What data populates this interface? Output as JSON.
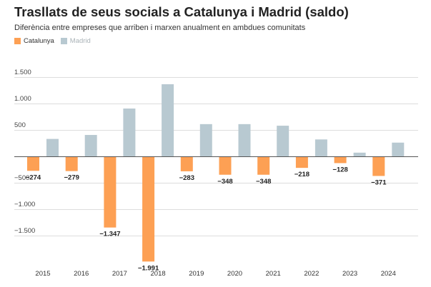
{
  "title": "Trasllats de seus socials a Catalunya i Madrid (saldo)",
  "subtitle": "Diferència entre empreses que arriben i marxen anualment en ambdues comunitats",
  "colors": {
    "catalunya": "#fda054",
    "madrid": "#b8c9d1",
    "grid": "#dddddd",
    "zero": "#555555"
  },
  "chart_data": {
    "type": "bar",
    "title": "Trasllats de seus socials a Catalunya i Madrid (saldo)",
    "subtitle": "Diferència entre empreses que arriben i marxen anualment en ambdues comunitats",
    "categories": [
      "2015",
      "2016",
      "2017",
      "2018",
      "2019",
      "2020",
      "2021",
      "2022",
      "2023",
      "2024"
    ],
    "series": [
      {
        "name": "Catalunya",
        "values": [
          -274,
          -279,
          -1347,
          -1991,
          -283,
          -348,
          -348,
          -218,
          -128,
          -371
        ],
        "labels": [
          "−274",
          "−279",
          "−1.347",
          "−1.991",
          "−283",
          "−348",
          "−348",
          "−218",
          "−128",
          "−371"
        ]
      },
      {
        "name": "Madrid",
        "values": [
          330,
          405,
          905,
          1365,
          610,
          610,
          580,
          320,
          70,
          260
        ]
      }
    ],
    "yticks": [
      1500,
      1000,
      500,
      0,
      -500,
      -1000,
      -1500
    ],
    "ytick_labels": [
      "1.500",
      "1.000",
      "500",
      "",
      "−500",
      "−1.000",
      "−1.500"
    ],
    "ylim": [
      -2000,
      1650
    ],
    "grid": true,
    "legend": "top-left"
  }
}
